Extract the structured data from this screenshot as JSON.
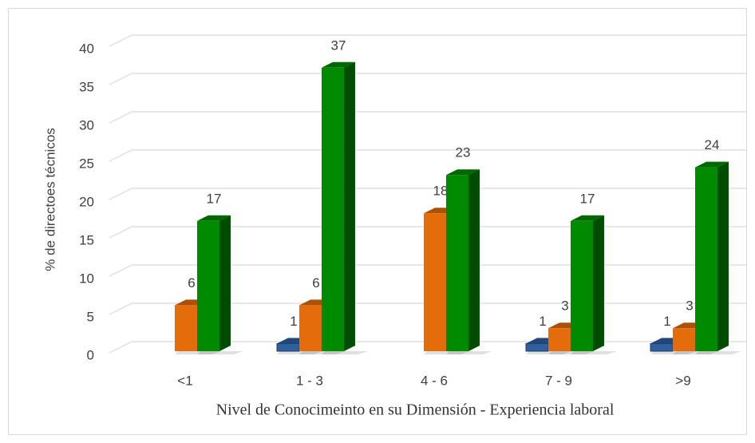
{
  "chart_data": {
    "type": "bar3d",
    "x_label": "Nivel de Conocimeinto en su Dimensión - Experiencia laboral",
    "y_label": "% de directoes técnicos",
    "categories": [
      "<1",
      "1 - 3",
      "4 - 6",
      "7 - 9",
      ">9"
    ],
    "series": [
      {
        "color": "#2f5f9e",
        "values": [
          null,
          1,
          null,
          1,
          1
        ]
      },
      {
        "color": "#e46c0a",
        "values": [
          6,
          6,
          18,
          3,
          3
        ]
      },
      {
        "color": "#008a00",
        "values": [
          17,
          37,
          23,
          17,
          24
        ]
      }
    ],
    "ylim": [
      0,
      40
    ],
    "yticks": [
      0,
      5,
      10,
      15,
      20,
      25,
      30,
      35,
      40
    ],
    "grid": true
  }
}
